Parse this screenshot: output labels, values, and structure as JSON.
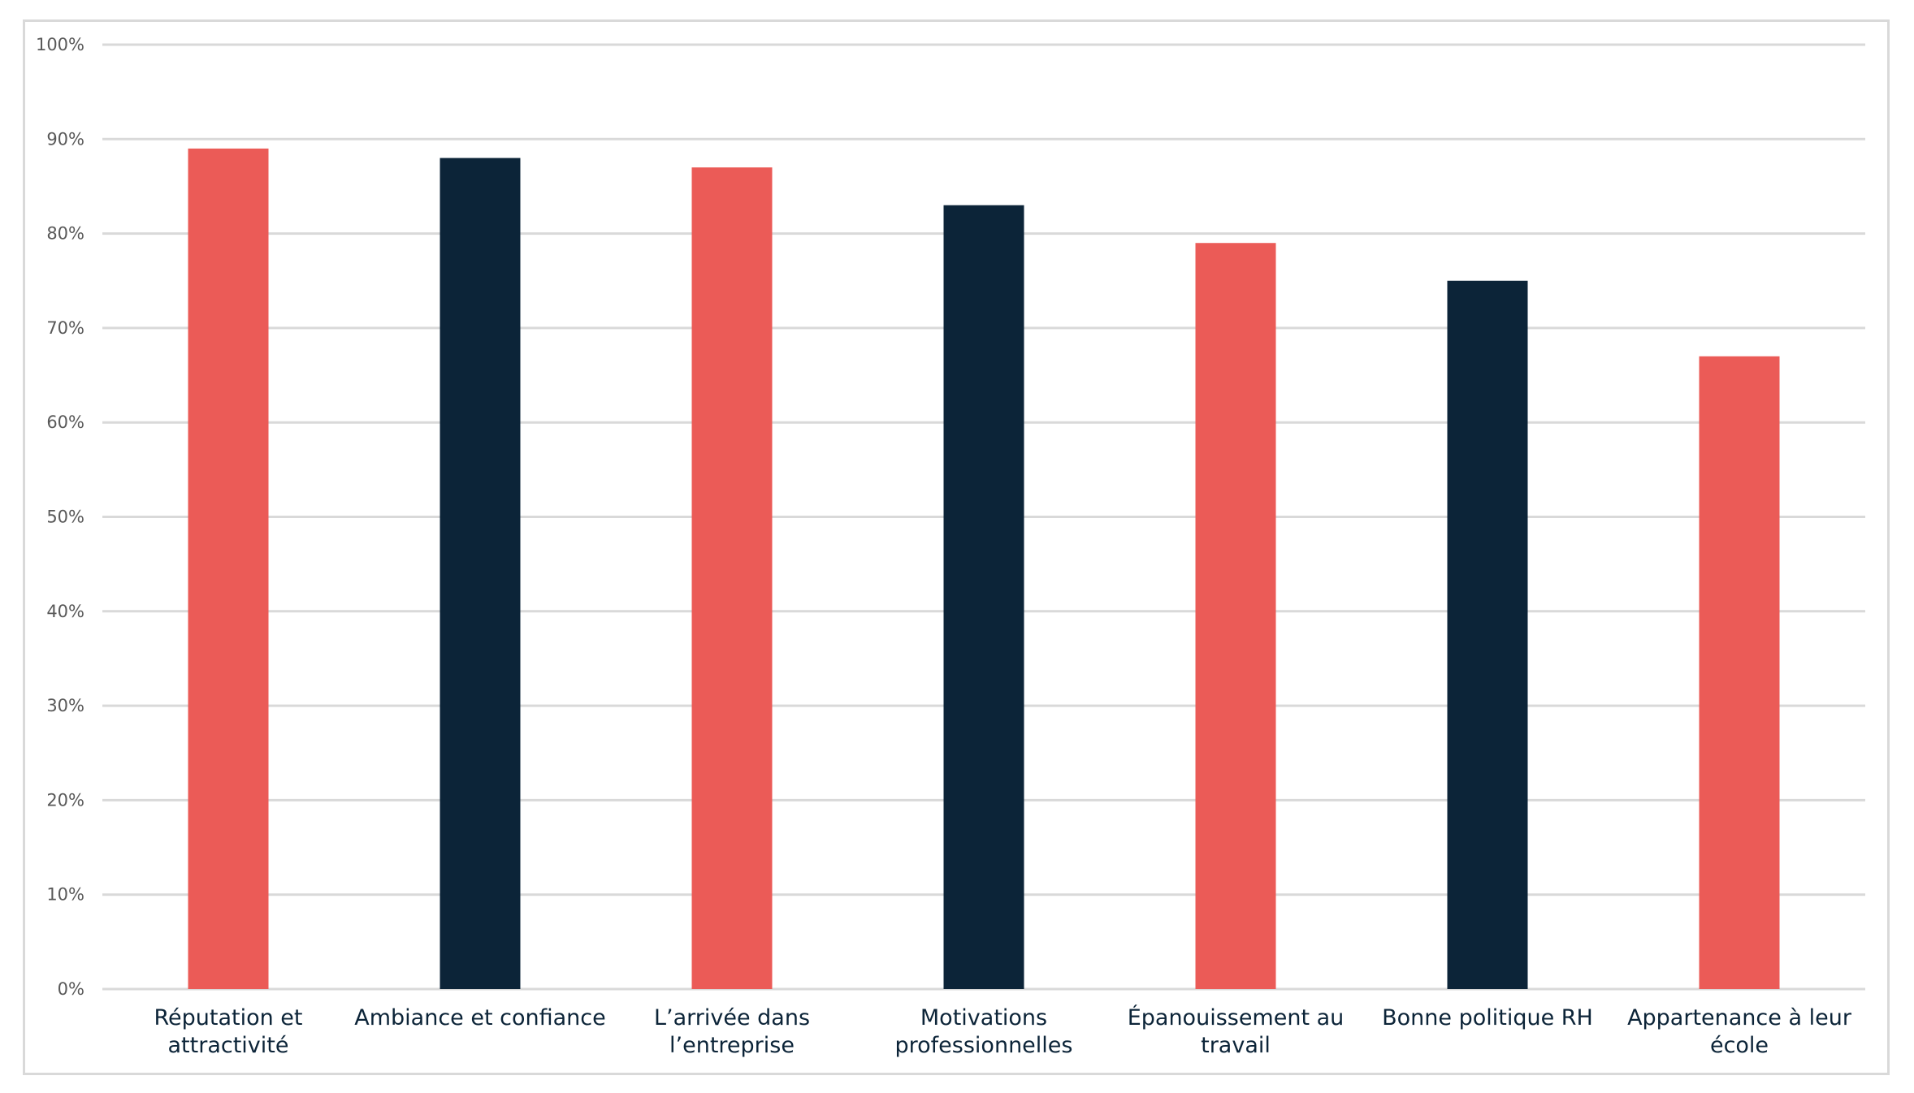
{
  "chart_data": {
    "type": "bar",
    "title": "",
    "xlabel": "",
    "ylabel": "",
    "ylim": [
      0,
      100
    ],
    "yticks": [
      "0%",
      "10%",
      "20%",
      "30%",
      "40%",
      "50%",
      "60%",
      "70%",
      "80%",
      "90%",
      "100%"
    ],
    "grid": true,
    "legend": "none",
    "categories": [
      [
        "Réputation et",
        "attractivité"
      ],
      [
        "Ambiance et confiance"
      ],
      [
        "L’arrivée dans",
        "l’entreprise"
      ],
      [
        "Motivations",
        "professionnelles"
      ],
      [
        "Épanouissement au",
        "travail"
      ],
      [
        "Bonne politique RH"
      ],
      [
        "Appartenance à leur",
        "école"
      ]
    ],
    "values": [
      89,
      88,
      87,
      83,
      79,
      75,
      67
    ],
    "colors": [
      "#eb5b57",
      "#0c2438",
      "#eb5b57",
      "#0c2438",
      "#eb5b57",
      "#0c2438",
      "#eb5b57"
    ]
  }
}
